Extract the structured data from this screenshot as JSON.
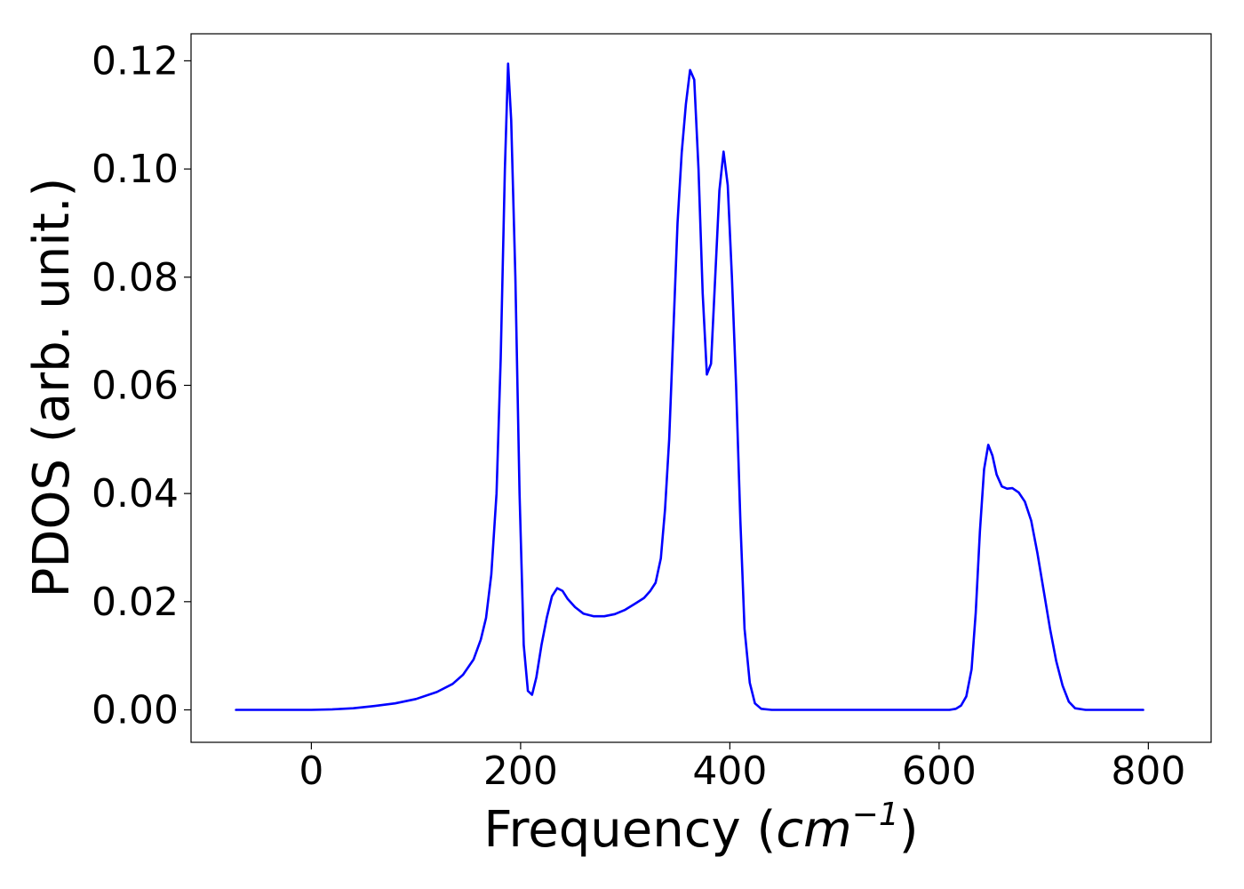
{
  "chart_data": {
    "type": "line",
    "title": "",
    "xlabel": "Frequency (cm⁻¹)",
    "xlabel_parts": {
      "prefix": "Frequency (",
      "unit": "cm",
      "exponent": "−1",
      "suffix": ")"
    },
    "ylabel": "PDOS (arb. unit.)",
    "xlim": [
      -115,
      860
    ],
    "ylim": [
      -0.006,
      0.125
    ],
    "xticks": [
      0,
      200,
      400,
      600,
      800
    ],
    "xtick_labels": [
      "0",
      "200",
      "400",
      "600",
      "800"
    ],
    "yticks": [
      0.0,
      0.02,
      0.04,
      0.06,
      0.08,
      0.1,
      0.12
    ],
    "ytick_labels": [
      "0.00",
      "0.02",
      "0.04",
      "0.06",
      "0.08",
      "0.10",
      "0.12"
    ],
    "grid": false,
    "legend": "none",
    "series": [
      {
        "color": "#0000ff",
        "points": [
          [
            -72,
            0.0
          ],
          [
            0,
            0.0
          ],
          [
            20,
            0.0001
          ],
          [
            40,
            0.0003
          ],
          [
            60,
            0.0007
          ],
          [
            80,
            0.0012
          ],
          [
            100,
            0.002
          ],
          [
            120,
            0.0033
          ],
          [
            135,
            0.0048
          ],
          [
            145,
            0.0065
          ],
          [
            155,
            0.0093
          ],
          [
            162,
            0.013
          ],
          [
            167,
            0.017
          ],
          [
            172,
            0.025
          ],
          [
            177,
            0.04
          ],
          [
            181,
            0.065
          ],
          [
            185,
            0.1
          ],
          [
            188,
            0.1195
          ],
          [
            191,
            0.109
          ],
          [
            195,
            0.08
          ],
          [
            199,
            0.04
          ],
          [
            203,
            0.012
          ],
          [
            207,
            0.0035
          ],
          [
            211,
            0.0028
          ],
          [
            215,
            0.006
          ],
          [
            220,
            0.012
          ],
          [
            225,
            0.017
          ],
          [
            230,
            0.021
          ],
          [
            235,
            0.0225
          ],
          [
            240,
            0.022
          ],
          [
            245,
            0.0205
          ],
          [
            252,
            0.019
          ],
          [
            260,
            0.0178
          ],
          [
            270,
            0.0173
          ],
          [
            280,
            0.0173
          ],
          [
            290,
            0.0177
          ],
          [
            300,
            0.0185
          ],
          [
            310,
            0.0197
          ],
          [
            318,
            0.0207
          ],
          [
            324,
            0.022
          ],
          [
            329,
            0.0235
          ],
          [
            334,
            0.028
          ],
          [
            338,
            0.037
          ],
          [
            342,
            0.05
          ],
          [
            346,
            0.07
          ],
          [
            350,
            0.09
          ],
          [
            354,
            0.103
          ],
          [
            358,
            0.112
          ],
          [
            362,
            0.1183
          ],
          [
            366,
            0.1165
          ],
          [
            370,
            0.1
          ],
          [
            374,
            0.077
          ],
          [
            378,
            0.062
          ],
          [
            382,
            0.064
          ],
          [
            386,
            0.08
          ],
          [
            390,
            0.096
          ],
          [
            394,
            0.1032
          ],
          [
            398,
            0.097
          ],
          [
            402,
            0.08
          ],
          [
            406,
            0.06
          ],
          [
            410,
            0.035
          ],
          [
            414,
            0.015
          ],
          [
            419,
            0.005
          ],
          [
            424,
            0.0012
          ],
          [
            430,
            0.0002
          ],
          [
            440,
            0.0
          ],
          [
            610,
            0.0
          ],
          [
            616,
            0.0002
          ],
          [
            621,
            0.0008
          ],
          [
            626,
            0.0025
          ],
          [
            631,
            0.0075
          ],
          [
            635,
            0.018
          ],
          [
            639,
            0.033
          ],
          [
            643,
            0.0445
          ],
          [
            647,
            0.049
          ],
          [
            651,
            0.047
          ],
          [
            655,
            0.0435
          ],
          [
            660,
            0.0413
          ],
          [
            665,
            0.0409
          ],
          [
            670,
            0.041
          ],
          [
            676,
            0.0402
          ],
          [
            682,
            0.0385
          ],
          [
            688,
            0.035
          ],
          [
            694,
            0.029
          ],
          [
            700,
            0.022
          ],
          [
            706,
            0.015
          ],
          [
            712,
            0.009
          ],
          [
            718,
            0.0045
          ],
          [
            724,
            0.0015
          ],
          [
            730,
            0.0003
          ],
          [
            740,
            0.0
          ],
          [
            795,
            0.0
          ]
        ]
      }
    ]
  }
}
